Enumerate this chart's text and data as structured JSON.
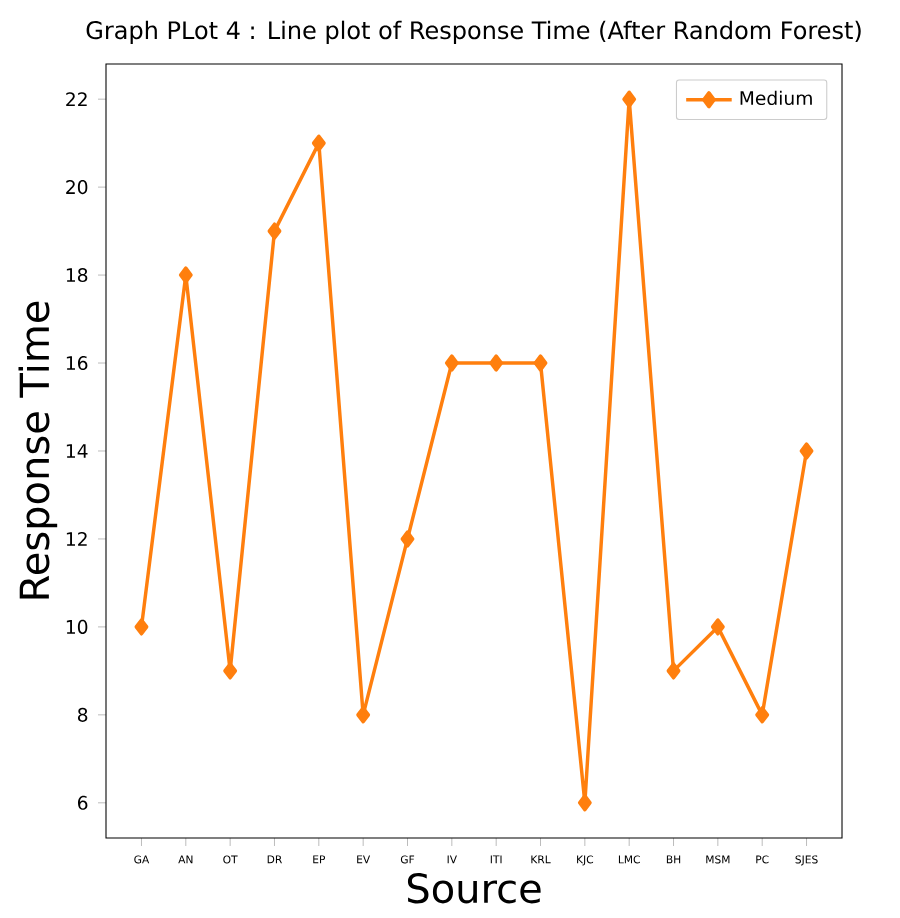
{
  "chart_data": {
    "type": "line",
    "title": "Graph PLot 4 : Line plot of Response Time (After Random Forest)",
    "xlabel": "Source",
    "ylabel": "Response Time",
    "categories": [
      "GA",
      "AN",
      "OT",
      "DR",
      "EP",
      "EV",
      "GF",
      "IV",
      "ITI",
      "KRL",
      "KJC",
      "LMC",
      "BH",
      "MSM",
      "PC",
      "SJES"
    ],
    "series": [
      {
        "name": "Medium",
        "color": "#ff7f0e",
        "values": [
          10,
          18,
          9,
          19,
          21,
          8,
          12,
          16,
          16,
          16,
          6,
          22,
          9,
          10,
          8,
          14
        ]
      }
    ],
    "ylim": [
      5.2,
      22.8
    ],
    "yticks": [
      6,
      8,
      10,
      12,
      14,
      16,
      18,
      20,
      22
    ],
    "legend": "top right",
    "marker": "diamond",
    "line_style": "solid",
    "grid": false
  }
}
